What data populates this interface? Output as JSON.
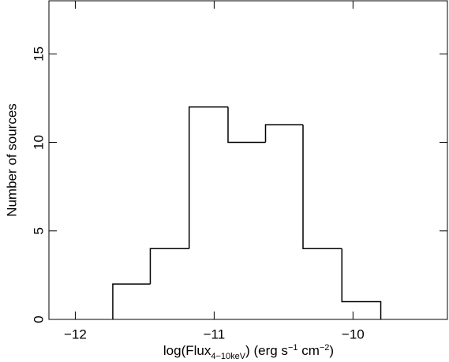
{
  "chart_data": {
    "type": "histogram",
    "bins": [
      -11.73,
      -11.46,
      -11.18,
      -10.9,
      -10.63,
      -10.36,
      -10.08,
      -9.8
    ],
    "values": [
      2,
      4,
      12,
      10,
      11,
      4,
      1
    ],
    "color": "#000000",
    "xlim": [
      -12.19,
      -9.32
    ],
    "xticks": [
      {
        "value": -12,
        "label": "−12"
      },
      {
        "value": -11,
        "label": "−11"
      },
      {
        "value": -10,
        "label": "−10"
      }
    ],
    "ylim": [
      0,
      18
    ],
    "yticks": [
      0,
      5,
      10,
      15
    ],
    "ylabel": "Number of sources",
    "xlabel": [
      "log(Flux",
      "4−10keV",
      ") (erg s",
      "−1",
      " cm",
      "−2",
      ")"
    ]
  }
}
